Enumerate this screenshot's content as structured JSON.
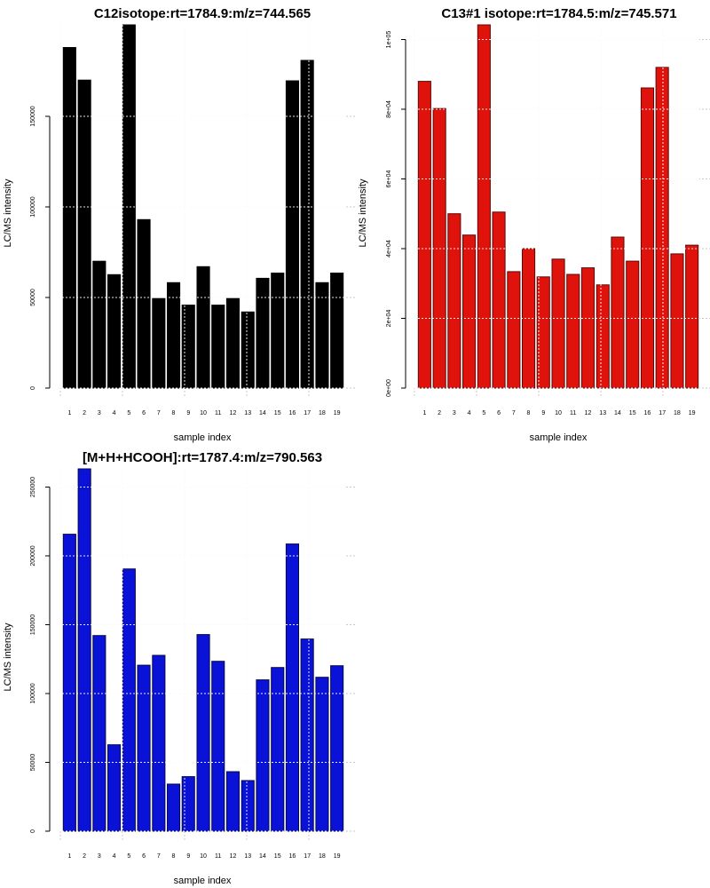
{
  "chart_data": [
    {
      "type": "bar",
      "title": "C12isotope:rt=1784.9:m/z=744.565",
      "xlabel": "sample index",
      "ylabel": "LC/MS intensity",
      "color": "#000000",
      "border": "#000000",
      "categories": [
        "1",
        "2",
        "3",
        "4",
        "5",
        "6",
        "7",
        "8",
        "9",
        "10",
        "11",
        "12",
        "13",
        "14",
        "15",
        "16",
        "17",
        "18",
        "19"
      ],
      "values": [
        188000,
        170000,
        70000,
        62600,
        200500,
        93000,
        49400,
        58200,
        45800,
        67000,
        45800,
        49400,
        42000,
        60600,
        63500,
        169600,
        180900,
        58200,
        63500
      ],
      "yticks": [
        0,
        50000,
        100000,
        150000
      ],
      "ytick_labels": [
        "0",
        "50000",
        "100000",
        "150000"
      ],
      "ylim": [
        0,
        200500
      ],
      "grid": true
    },
    {
      "type": "bar",
      "title": "C13#1 isotope:rt=1784.5:m/z=745.571",
      "xlabel": "sample index",
      "ylabel": "LC/MS intensity",
      "color": "#e0120c",
      "border": "#5a0a08",
      "categories": [
        "1",
        "2",
        "3",
        "4",
        "5",
        "6",
        "7",
        "8",
        "9",
        "10",
        "11",
        "12",
        "13",
        "14",
        "15",
        "16",
        "17",
        "18",
        "19"
      ],
      "values": [
        88000,
        80200,
        50000,
        43900,
        104200,
        50500,
        33400,
        40000,
        31900,
        37000,
        32600,
        34500,
        29600,
        43300,
        36400,
        86100,
        92000,
        38500,
        41000
      ],
      "yticks": [
        0,
        20000,
        40000,
        60000,
        80000,
        100000
      ],
      "ytick_labels": [
        "0e+00",
        "2e+04",
        "4e+04",
        "6e+04",
        "8e+04",
        "1e+05"
      ],
      "ylim": [
        0,
        104200
      ],
      "grid": true
    },
    {
      "type": "bar",
      "title": "[M+H+HCOOH]:rt=1787.4:m/z=790.563",
      "xlabel": "sample index",
      "ylabel": "LC/MS intensity",
      "color": "#0a12d8",
      "border": "#05084a",
      "categories": [
        "1",
        "2",
        "3",
        "4",
        "5",
        "6",
        "7",
        "8",
        "9",
        "10",
        "11",
        "12",
        "13",
        "14",
        "15",
        "16",
        "17",
        "18",
        "19"
      ],
      "values": [
        215700,
        263200,
        142100,
        62800,
        190500,
        120600,
        127700,
        34200,
        39600,
        142800,
        123400,
        43200,
        36800,
        109900,
        118900,
        208600,
        139600,
        111800,
        120200
      ],
      "yticks": [
        0,
        50000,
        100000,
        150000,
        200000,
        250000
      ],
      "ytick_labels": [
        "0",
        "50000",
        "100000",
        "150000",
        "200000",
        "250000"
      ],
      "ylim": [
        0,
        263200
      ],
      "grid": true
    }
  ]
}
